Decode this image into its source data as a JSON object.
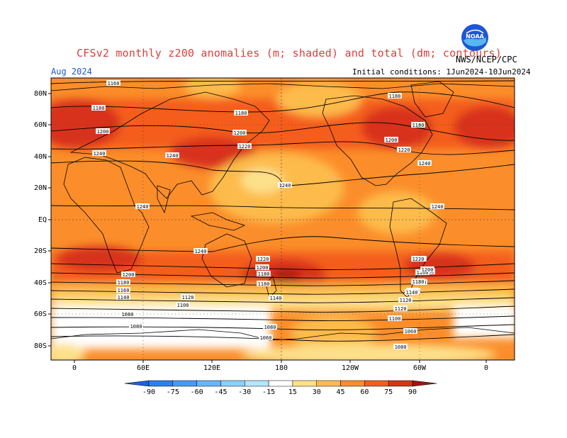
{
  "title": "CFSv2 monthly z200 anomalies (m; shaded) and total (dm; contours)",
  "valid_month": "Aug 2024",
  "initial_conditions": "Initial conditions: 1Jun2024-10Jun2024",
  "agency": "NWS/NCEP/CPC",
  "logo_text": "NOAA",
  "lat_labels": [
    "80N",
    "60N",
    "40N",
    "20N",
    "EQ",
    "20S",
    "40S",
    "60S",
    "80S"
  ],
  "lon_labels": [
    "0",
    "60E",
    "120E",
    "180",
    "120W",
    "60W",
    "0"
  ],
  "colorbar": {
    "levels": [
      "-90",
      "-75",
      "-60",
      "-45",
      "-30",
      "-15",
      "15",
      "30",
      "45",
      "60",
      "75",
      "90"
    ],
    "colors": [
      "#1e5fe0",
      "#2f7df0",
      "#4a98f5",
      "#6ab5f8",
      "#8ccff9",
      "#b5e6fb",
      "#ffffff",
      "#fde08a",
      "#fdbb4c",
      "#fb8e2a",
      "#f45d1d",
      "#d8331a",
      "#a0150f"
    ]
  },
  "contour_labels": [
    "1160",
    "1180",
    "1180",
    "1180",
    "1200",
    "1200",
    "1220",
    "1240",
    "1240",
    "1240",
    "1240",
    "1240",
    "1180",
    "1160",
    "1200",
    "1220",
    "1240",
    "1240",
    "1220",
    "1200",
    "1180",
    "1200",
    "1180",
    "1160",
    "1140",
    "1120",
    "1100",
    "1220",
    "1200",
    "1180",
    "1180",
    "1140",
    "1120",
    "1100",
    "1080",
    "1080",
    "1080",
    "1060",
    "1060",
    "1080",
    "1100",
    "1120",
    "1140",
    "1160",
    "1180",
    "1200",
    "1220"
  ]
}
